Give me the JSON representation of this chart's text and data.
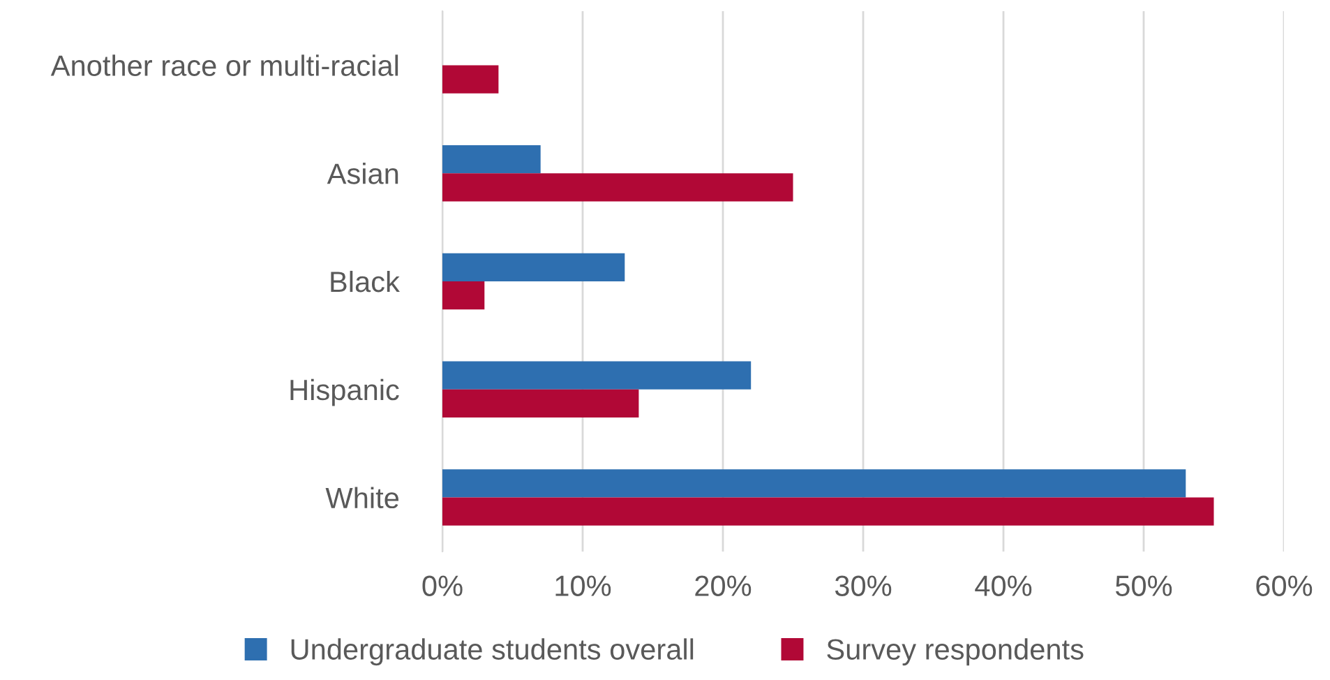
{
  "chart_data": {
    "type": "bar",
    "orientation": "horizontal",
    "categories": [
      "Another race or multi-racial",
      "Asian",
      "Black",
      "Hispanic",
      "White"
    ],
    "series": [
      {
        "name": "Undergraduate students overall",
        "color": "#2e6fb0",
        "values": [
          null,
          7,
          13,
          22,
          53
        ]
      },
      {
        "name": "Survey respondents",
        "color": "#b10836",
        "values": [
          4,
          25,
          3,
          14,
          55
        ]
      }
    ],
    "xlim": [
      0,
      60
    ],
    "xticks": [
      {
        "value": 0,
        "label": "0%"
      },
      {
        "value": 10,
        "label": "10%"
      },
      {
        "value": 20,
        "label": "20%"
      },
      {
        "value": 30,
        "label": "30%"
      },
      {
        "value": 40,
        "label": "40%"
      },
      {
        "value": 50,
        "label": "50%"
      },
      {
        "value": 60,
        "label": "60%"
      }
    ],
    "grid": "x",
    "legend": "bottom"
  }
}
